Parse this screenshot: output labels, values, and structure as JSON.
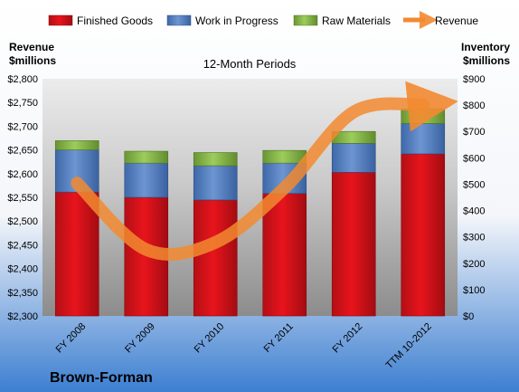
{
  "chart_data": {
    "type": "bar",
    "title": "12-Month Periods",
    "company": "Brown-Forman",
    "categories": [
      "FY 2008",
      "FY 2009",
      "FY 2010",
      "FY 2011",
      "FY 2012",
      "TTM 10-2012"
    ],
    "left_axis": {
      "label_line1": "Revenue",
      "label_line2": "$millions",
      "ylim": [
        2300,
        2800
      ],
      "ticks": [
        "$2,300",
        "$2,350",
        "$2,400",
        "$2,450",
        "$2,500",
        "$2,550",
        "$2,600",
        "$2,650",
        "$2,700",
        "$2,750",
        "$2,800"
      ]
    },
    "right_axis": {
      "label_line1": "Inventory",
      "label_line2": "$millions",
      "ylim": [
        0,
        900
      ],
      "ticks": [
        "$0",
        "$100",
        "$200",
        "$300",
        "$400",
        "$500",
        "$600",
        "$700",
        "$800",
        "$900"
      ]
    },
    "series": [
      {
        "name": "Finished Goods",
        "type": "stacked-bar",
        "axis": "right",
        "color": "#e8141c",
        "values": [
          470,
          450,
          440,
          465,
          545,
          615
        ]
      },
      {
        "name": "Work in Progress",
        "type": "stacked-bar",
        "axis": "right",
        "color": "#5b87c9",
        "values": [
          160,
          130,
          130,
          115,
          110,
          115
        ]
      },
      {
        "name": "Raw Materials",
        "type": "stacked-bar",
        "axis": "right",
        "color": "#8bbb4f",
        "values": [
          35,
          45,
          50,
          48,
          45,
          55
        ]
      },
      {
        "name": "Revenue",
        "type": "line",
        "axis": "left",
        "color": "#f28a30",
        "values": [
          2580,
          2440,
          2455,
          2570,
          2730,
          2745
        ]
      }
    ],
    "legend_position": "top",
    "grid": false
  }
}
